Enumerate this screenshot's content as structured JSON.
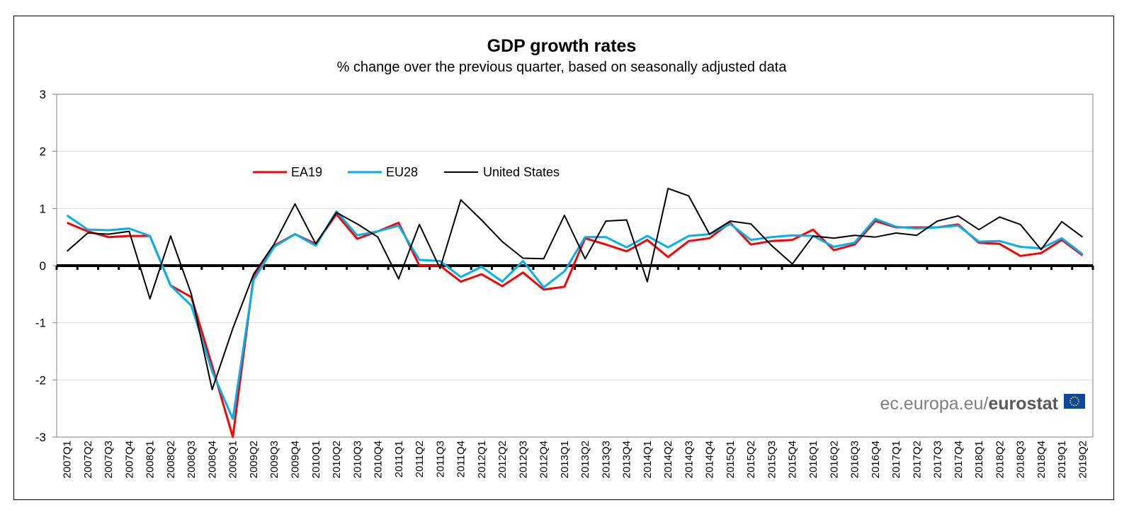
{
  "chart_data": {
    "type": "line",
    "title": "GDP growth rates",
    "subtitle": "% change over the previous quarter, based on seasonally adjusted data",
    "xlabel": "",
    "ylabel": "",
    "ylim": [
      -3,
      3
    ],
    "yticks": [
      "3",
      "2",
      "1",
      "0",
      "-1",
      "-2",
      "-3"
    ],
    "grid": true,
    "legend_placement": "upper-left inside plot",
    "categories": [
      "2007Q1",
      "2007Q2",
      "2007Q3",
      "2007Q4",
      "2008Q1",
      "2008Q2",
      "2008Q3",
      "2008Q4",
      "2009Q1",
      "2009Q2",
      "2009Q3",
      "2009Q4",
      "2010Q1",
      "2010Q2",
      "2010Q3",
      "2010Q4",
      "2011Q1",
      "2011Q2",
      "2011Q3",
      "2011Q4",
      "2012Q1",
      "2012Q2",
      "2012Q3",
      "2012Q4",
      "2013Q1",
      "2013Q2",
      "2013Q3",
      "2013Q4",
      "2014Q1",
      "2014Q2",
      "2014Q3",
      "2014Q4",
      "2015Q1",
      "2015Q2",
      "2015Q3",
      "2015Q4",
      "2016Q1",
      "2016Q2",
      "2016Q3",
      "2016Q4",
      "2017Q1",
      "2017Q2",
      "2017Q3",
      "2017Q4",
      "2018Q1",
      "2018Q2",
      "2018Q3",
      "2018Q4",
      "2019Q1",
      "2019Q2"
    ],
    "series": [
      {
        "name": "EA19",
        "color": "#ff0000",
        "values": [
          0.75,
          0.6,
          0.5,
          0.52,
          0.52,
          -0.35,
          -0.55,
          -1.75,
          -3.0,
          -0.2,
          0.35,
          0.55,
          0.38,
          0.9,
          0.47,
          0.6,
          0.75,
          0.0,
          0.0,
          -0.28,
          -0.15,
          -0.36,
          -0.12,
          -0.42,
          -0.37,
          0.48,
          0.37,
          0.25,
          0.45,
          0.15,
          0.43,
          0.48,
          0.75,
          0.37,
          0.43,
          0.45,
          0.63,
          0.27,
          0.37,
          0.78,
          0.67,
          0.67,
          0.67,
          0.72,
          0.4,
          0.38,
          0.17,
          0.22,
          0.45,
          0.18
        ]
      },
      {
        "name": "EU28",
        "color": "#00b0f0",
        "values": [
          0.88,
          0.63,
          0.62,
          0.65,
          0.52,
          -0.35,
          -0.7,
          -1.85,
          -2.68,
          -0.25,
          0.33,
          0.55,
          0.35,
          0.95,
          0.53,
          0.6,
          0.7,
          0.1,
          0.08,
          -0.2,
          -0.02,
          -0.28,
          0.08,
          -0.38,
          -0.1,
          0.5,
          0.5,
          0.32,
          0.52,
          0.32,
          0.52,
          0.55,
          0.73,
          0.45,
          0.5,
          0.53,
          0.52,
          0.33,
          0.4,
          0.82,
          0.68,
          0.65,
          0.67,
          0.7,
          0.42,
          0.43,
          0.33,
          0.3,
          0.48,
          0.2
        ]
      },
      {
        "name": "United States",
        "color": "#000000",
        "values": [
          0.25,
          0.57,
          0.55,
          0.6,
          -0.58,
          0.52,
          -0.5,
          -2.17,
          -1.1,
          -0.15,
          0.38,
          1.08,
          0.38,
          0.93,
          0.73,
          0.5,
          -0.23,
          0.72,
          -0.05,
          1.15,
          0.8,
          0.42,
          0.13,
          0.12,
          0.88,
          0.12,
          0.78,
          0.8,
          -0.28,
          1.35,
          1.22,
          0.55,
          0.78,
          0.73,
          0.35,
          0.03,
          0.52,
          0.48,
          0.53,
          0.5,
          0.57,
          0.53,
          0.78,
          0.87,
          0.63,
          0.85,
          0.72,
          0.28,
          0.77,
          0.5
        ]
      }
    ]
  },
  "branding": {
    "site": "ec.europa.eu/",
    "name": "eurostat"
  },
  "colors": {
    "zero_line": "#000000",
    "grid": "#d9d9d9",
    "eu_flag_blue": "#0e47a1",
    "eu_flag_stars": "#ffdd00"
  }
}
